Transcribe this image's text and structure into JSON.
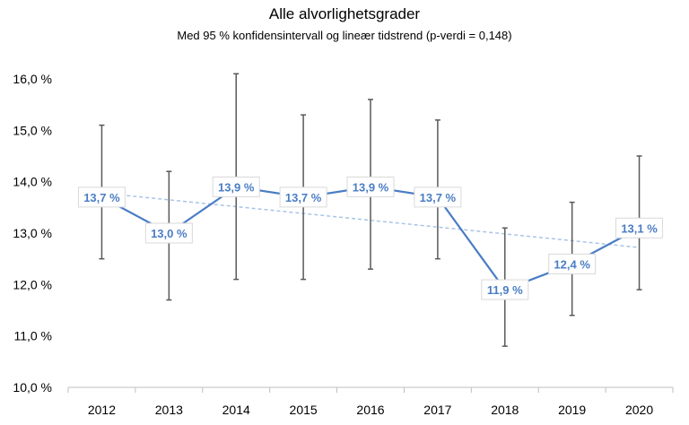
{
  "chart_data": {
    "type": "line",
    "title": "Alle alvorlighetsgrader",
    "subtitle": "Med 95 % konfidensintervall og lineær tidstrend (p-verdi = 0,148)",
    "xlabel": "",
    "ylabel": "",
    "categories": [
      "2012",
      "2013",
      "2014",
      "2015",
      "2016",
      "2017",
      "2018",
      "2019",
      "2020"
    ],
    "series": [
      {
        "values": [
          13.7,
          13.0,
          13.9,
          13.7,
          13.9,
          13.7,
          11.9,
          12.4,
          13.1
        ],
        "labels": [
          "13,7 %",
          "13,0 %",
          "13,9 %",
          "13,7 %",
          "13,9 %",
          "13,7 %",
          "11,9 %",
          "12,4 %",
          "13,1 %"
        ],
        "ci_low": [
          12.5,
          11.7,
          12.1,
          12.1,
          12.3,
          12.5,
          10.8,
          11.4,
          11.9
        ],
        "ci_high": [
          15.1,
          14.2,
          16.1,
          15.3,
          15.6,
          15.2,
          13.1,
          13.6,
          14.5
        ],
        "color": "#4a7dc4"
      }
    ],
    "trend": {
      "start": 13.78,
      "end": 12.72,
      "style": "dashed",
      "color": "#a9c4e6"
    },
    "ylim": [
      10.0,
      16.0
    ],
    "yticks": [
      10.0,
      11.0,
      12.0,
      13.0,
      14.0,
      15.0,
      16.0
    ],
    "ytick_labels": [
      "10,0 %",
      "11,0 %",
      "12,0 %",
      "13,0 %",
      "14,0 %",
      "15,0 %",
      "16,0 %"
    ],
    "errorbar_color": "#595959",
    "grid": false,
    "legend": "none"
  }
}
